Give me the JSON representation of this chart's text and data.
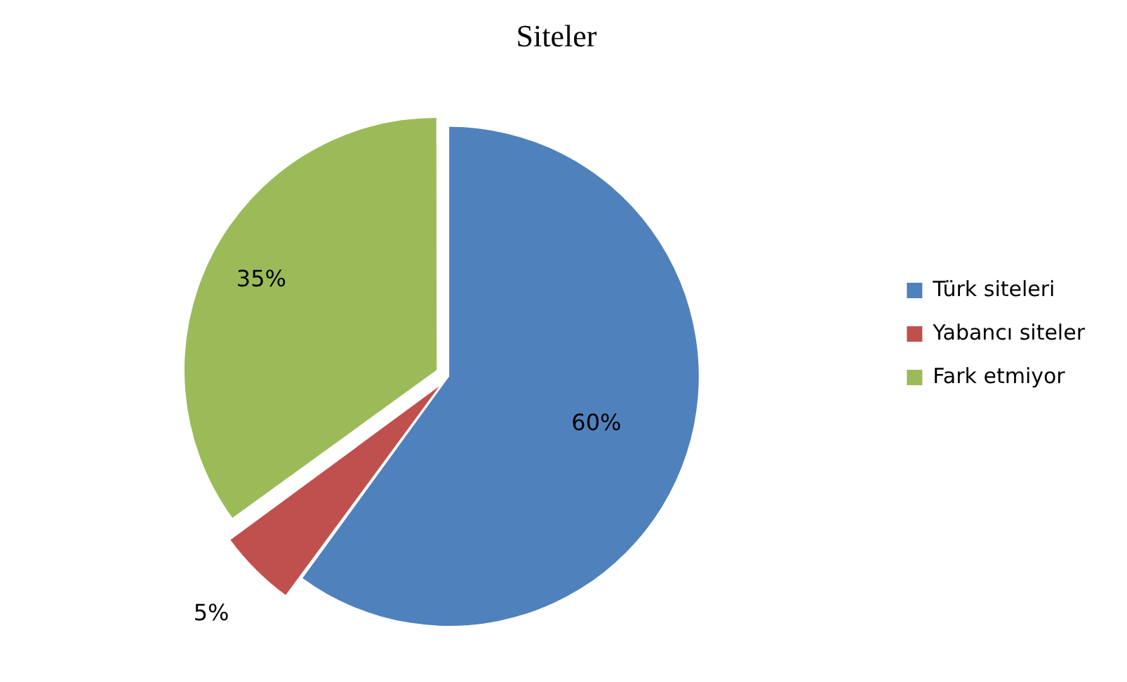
{
  "chart_data": {
    "type": "pie",
    "title": "Siteler",
    "categories": [
      "Türk siteleri",
      "Yabancı siteler",
      "Fark etmiyor"
    ],
    "values": [
      60,
      5,
      35
    ],
    "colors": [
      "#4f81bd",
      "#c0504d",
      "#9bbb59"
    ],
    "value_labels": [
      "60%",
      "5%",
      "35%"
    ],
    "legend": "right"
  }
}
